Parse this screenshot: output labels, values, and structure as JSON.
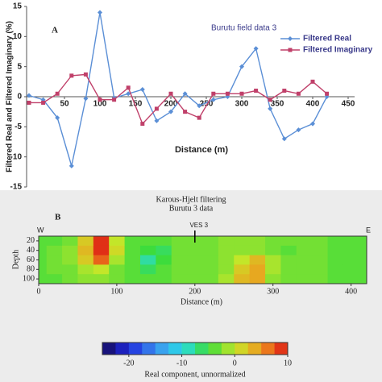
{
  "chart_data": [
    {
      "type": "line",
      "panel": "A",
      "title": "Burutu field data 3",
      "xlabel": "Distance (m)",
      "ylabel": "Filtered Real and Filtered Imaginary (%)",
      "x": [
        0,
        20,
        40,
        60,
        80,
        100,
        120,
        140,
        160,
        180,
        200,
        220,
        240,
        260,
        280,
        300,
        320,
        340,
        360,
        380,
        400,
        420
      ],
      "series": [
        {
          "name": "Filtered Real",
          "color": "#5b8fd6",
          "marker": "diamond",
          "values": [
            0.2,
            -0.5,
            -3.5,
            -11.5,
            -0.3,
            14,
            -0.2,
            0.5,
            1.2,
            -4,
            -2.5,
            0.5,
            -1.5,
            -0.5,
            0,
            5,
            8,
            -2,
            -7,
            -5.5,
            -4.5,
            0
          ]
        },
        {
          "name": "Filtered Imaginary",
          "color": "#c0406a",
          "marker": "square",
          "values": [
            -1,
            -1,
            0.5,
            3.5,
            3.7,
            -0.5,
            -0.5,
            1.5,
            -4.5,
            -2,
            0.5,
            -2.5,
            -3.5,
            0.5,
            0.5,
            0.5,
            1,
            -0.5,
            1,
            0.5,
            2.5,
            0.5
          ]
        }
      ],
      "xlim": [
        0,
        450
      ],
      "xticks": [
        50,
        100,
        150,
        200,
        250,
        300,
        350,
        400,
        450
      ],
      "ylim": [
        -15,
        15
      ],
      "yticks": [
        -15,
        -10,
        -5,
        0,
        5,
        10,
        15
      ],
      "legend": "upper right"
    },
    {
      "type": "heatmap",
      "panel": "B",
      "title": "Karous-Hjelt filtering",
      "subtitle": "Burutu 3 data",
      "xlabel": "Distance (m)",
      "ylabel": "Depth",
      "left_label": "W",
      "right_label": "E",
      "marker_label": "VES 3",
      "marker_x": 200,
      "x": [
        0,
        20,
        40,
        60,
        80,
        100,
        120,
        140,
        160,
        180,
        200,
        220,
        240,
        260,
        280,
        300,
        320,
        340,
        360,
        380,
        400,
        420
      ],
      "y": [
        20,
        40,
        60,
        80,
        100
      ],
      "z": [
        [
          -4,
          -4,
          -3,
          2,
          9,
          0,
          -4,
          -4,
          -4,
          -3,
          -3,
          -3,
          -2,
          -2,
          -2,
          -3,
          -3,
          -3,
          -3,
          -4,
          -4,
          -4
        ],
        [
          -4,
          -3,
          -2,
          3,
          9,
          1,
          -4,
          -5,
          -6,
          -3,
          -3,
          -3,
          -2,
          -2,
          -2,
          -3,
          -4,
          -3,
          -3,
          -4,
          -4,
          -4
        ],
        [
          -4,
          -3,
          -2,
          2,
          7,
          -1,
          -4,
          -8,
          -5,
          -3,
          -3,
          -3,
          -2,
          0,
          3,
          -1,
          -3,
          -3,
          -3,
          -4,
          -4,
          -4
        ],
        [
          -4,
          -3,
          -3,
          -1,
          0,
          -3,
          -4,
          -6,
          -4,
          -3,
          -3,
          -3,
          -2,
          2,
          4,
          -1,
          -3,
          -3,
          -3,
          -4,
          -4,
          -4
        ],
        [
          -4,
          -4,
          -3,
          -2,
          -2,
          -3,
          -4,
          -4,
          -4,
          -3,
          -3,
          -3,
          -1,
          3,
          4,
          -2,
          -3,
          -3,
          -3,
          -4,
          -4,
          -4
        ]
      ],
      "xlim": [
        0,
        420
      ],
      "xticks": [
        0,
        100,
        200,
        300,
        400
      ],
      "ylim": [
        10,
        110
      ],
      "yticks": [
        20,
        40,
        60,
        80,
        100
      ],
      "zlim": [
        -25,
        10
      ],
      "colorbar_ticks": [
        -20,
        -10,
        0,
        10
      ],
      "colorbar_label": "Real component, unnormalized"
    }
  ]
}
